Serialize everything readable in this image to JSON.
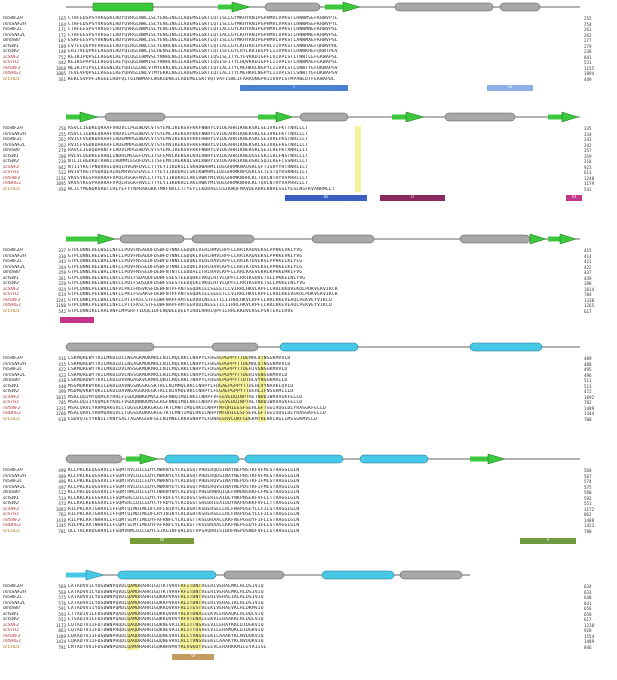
{
  "colors": {
    "strand": "#3cc83c",
    "helix": "#46c8e6",
    "helix_gray": "#a8a8a8",
    "motif_blue": "#4a7fd4",
    "motif_magenta": "#c2368a",
    "motif_olive": "#7a9c3a",
    "motif_tan": "#c39a60",
    "highlight": "#f3ec7a"
  },
  "species": [
    "hsSNF2H",
    "mmSNF2H",
    "hsSNF2L",
    "mmSNF2L",
    "dmISWI",
    "scISW1",
    "scISW2",
    "scSNF2",
    "scSTH1",
    "mtSNF2",
    "mtBRG1",
    "scCHD1"
  ],
  "blocks": [
    {
      "starts": [
        "165",
        "164",
        "171",
        "172",
        "187",
        "189",
        "148",
        "752",
        "442",
        "1068",
        "1005",
        "361"
      ],
      "ends": [
        "255",
        "254",
        "261",
        "262",
        "277",
        "279",
        "238",
        "841",
        "531",
        "1155",
        "1094",
        "449"
      ],
      "seqs": [
        "CTRFEDSPSYVKGGKLRDYQVRGLNWLISLYENGINGILADEMGLGKTLQTISLLGYMKHYRNIPGPHMVLVPKSTLHNWMSEFKRWVPTL",
        "CTRFEDSPSYVKGGKLRDYQVRGLNWLISLYENGINGILADEMGLGKTLQTISLLGYMKHYRNIPGPHMVLVPKSTLHNWMSEFKRWVPTL",
        "CTRFEESPSYVKGGTLRDYQVRGLNWMISLYENGINGILADEMGLGKTLQTIALLGYLKHYRNIPGPHMVLVPKSTLHNWMNEFKRWVPSL",
        "CTRFEESPSYVKGGTLRDYQVRGLNWMISLYENGINGILADEMGLGKTLQTIALLGYLKHYRNIPGPHMVLVPKSTLHNWMNEFKRWVPSL",
        "ESRFEESPSYVKNGKLRDYQVRGLNWLISLYENGINGILADEMGLGKTLQTISLLGYMKHYRNIPGPHMVLVPKSTLANWMAEFKRWVPSL",
        "EVTFEQSPAFVKGGELRDYQLRGLNWLLSLYENHLNGILADEMGLGKTLQTIALLGYLKHIKRIPGPHLIIVPKSTLANWHAEFQRWVPHL",
        "ERITVEQPKFLRGGHLRDYQIQGLNWLISLHENSLNGILADEMGLGKTLQTISFLGYLRYLKKIDGPFLIIVPKSTLDNWKREFQRWTPEV",
        "KEIKIPQPSLLRGGKLREYQLQGLEWMVSLYNNHLNGILADEMGLGKTIQSISLITYLYEVKKDIGPFLVIVPLSTITNWTLEFEKWAPSL",
        "KEIKSPAPSLLRGGQLREYQLQGLNWMISLYNNHLNGILADEMGLGKTIQSISFITYLHQVKKDIGPFLIIVPLSTLANWMAEFEKWAPSL",
        "NEIKIPIPSLLRGGNLREYQHIGLDWLVTMYEKKLNGILADEMGLGKTIQTIALITYLMEHKRLNGPYLIIVPLSTLSNWTYEFDKWAPSV",
        "TEVEVPQPSLLRGGELREYQHVGLDWLVTMYEKKLNGILADEMGLGKTIQTIALITYLMEHKRLNGPYLIIVPLSTLSNWTYEFDKWAPSV",
        "KEKLSVPPFIKGGELRDFQLTGINWMAFLWSKGDNGILADEMGLGKTVQTVAFISWLIFARRQNGPHIIVVPLSTMPAWLDTFEKWAPDL"
      ]
    },
    {
      "starts": [
        "256",
        "255",
        "262",
        "263",
        "278",
        "280",
        "239",
        "842",
        "532",
        "1156",
        "1095",
        "450"
      ],
      "ends": [
        "335",
        "334",
        "341",
        "342",
        "357",
        "359",
        "318",
        "923",
        "613",
        "1240",
        "1179",
        "541"
      ],
      "seqs": [
        "RSVCLIGDKEQRAAFVRDVLLPGEWDVCVTSYEMLIKEKSVFKKFNWRYLVIDEAHRIKNEKSKLSEIVREFKTTNRLLLT",
        "RSVCLIGDKEQRAAFVRDVLLPGEWDVCVTSYEMLIKEKSVFKKFNWRYLVIDEAHRIKNEKSKLSEIVREFKTTNRLLLT",
        "RVICFVGDKDARAAFIRDEMMPGEWDVCVTSYEMVIKEKSVFKKFHWRYLVIDEAHRIKNEKSKLSEIVREFKSTNRLLLT",
        "RVICFVGDKDARAAFIRDEMMPGEWDVCVTSYEMVIKEKSVFKKFHWRYLVIDEAHRIKNEKSKLSEIVREFKSTNRLLLT",
        "RAVCLIGDQDARNTFIRDVLMPGEWDVCVTSYEMCIREKSVFKKFNWRYLVIDEAHRIKNEKSKLSEILREFKTANRLLIT",
        "RVLVLQGDKEERHQLINDRLMEGEFDVLITSFEMVLREKGALKRLRWRYIVIDEAHRIKNEDSSLSKIIRLFNSTNRLLIT",
        "NTLILHGDKDTRHKIIRDMMLEGQFDVLITSFEMVIREKKDLSKLKWRYIVIDEAHRIKNEHSKLSQILREFCSSNRLLLT",
        "NTIIYKGTPNQRHSLQHQIRVGNFDVLLTTYEYIIKDKSLLSKHDWAHMIIDEGHRMKNAQSKLSFTISHYYRTRNRLILT",
        "NVIVYRGTPSQRQEAIREMRVGSFDVLLTTYEYIIKDQHILSKIKWMHMIIDEGHRMKNPQSKLSLTLSTQYRSKNRLILT",
        "VKVSYKGSPAARRAFVPQLRSGKFNVLLTTYEYIIKDKHILAKIRWKYMIVDEGHRMKNHHCKLTQVLNTHYVAPRRLLLT",
        "VKVSYKGSPAARRAFVPQLRSGKFNVLLTTYEYIIKDKHILAKIRWKYMIVDEGHRMKNHHCKLTQVLNTHYVAPRRLLLT",
        "NCICYMGNQKSRDTIREYEFYTNPRAKGKKTMKFNVLLTTYEYILKDRAELGSIKWQFMAVDEAHRLKNAESSLYESLNSFKVANRMLLT"
      ]
    },
    {
      "starts": [
        "337",
        "336",
        "343",
        "344",
        "359",
        "361",
        "320",
        "924",
        "614",
        "1241",
        "1180",
        "542"
      ],
      "ends": [
        "415",
        "414",
        "421",
        "422",
        "437",
        "439",
        "398",
        "1014",
        "704",
        "1330",
        "1265",
        "617"
      ],
      "seqs": [
        "GTPLQNNLHELWSLLNFLLPDVFNSADDFDSWFDTNNCLGDQKLVERLHMVLRPFLLRRIKADVEKSLPPKKEVKIYVG",
        "GTPLQNNLHELWSLLNFLLPDVFNSADDFDSWFDTNNCLGDQKLVERLHMVLRPFLLRRIKADVEKSLPPKKEVKIYVG",
        "GTPLQNNLHELWALLNFLLPDVFNSSEDFDSWFDTNNCLGDQKLVERLHAVLKPFLLRRIKTDVEKSLPPKKEIKIYLG",
        "GTPLQNNLHELWALLNFLLPDVFNSSEDFDSWFDTNNCLGDQKLVERLHAVLKPFLLRRIKTDVEKSLPPKKEIKIYLG",
        "GTPLQNNLHELWALLNFLLPDVFNSSEDFDEWFNTNTCLGDDALITRLHAVLKPFLLRRLKAEVEKRLKPKKEMKIFVG",
        "GTPLQNNLHELWALLNFLLPDIFSDAQDFDDWFSSESTEEDQDKIVKQLHTVLQPFLLRRIKSDVETSLLPKKELNLYVG",
        "GTPLQNNLHELWALLNFLLPDIFSDSQDFDSWFSSESTEEDQEKIVKQLHTVLQPFLLRRIKSDVETSLLPKKELNLYVG",
        "GTPLQNNLPELWALLNFVLPKIFNSVKSFDEWFNTPFANTGGQDKIELSEEETLLVIRRLHKVLRPFLLRRLKKDVEKDLPDKVEKVIKCK",
        "GTPLQNNLPELWALLNFLLPKIFSSAKSFDEWFNTPFANTGGQDKIELSEEETLLVIRRLHKVLRPFLLRRLKKEVEKDLPDKVEKVIKCK",
        "GTPLQNKLPELWALLNFLLPTIFKSCSTFEQWFNAPFAMTGERVDLNEEETILIIRRLHKVLRPFLLRRLKKEVEAQLPEKVEYVIKCD",
        "GTPLQNKLPELWALLNFLLPTIFKSCSTFEQWFNAPFAMTGERVDLNEEETILIIRRLHKVLRPFLLRRLKKEVEAQLPEKVEYVIKCD",
        "GTPLQNNIKELAALVNFLMPGRFTIDQEIDFENQDEEQEEYIHDLHRRIQPFILRRLKKDVEKSLPSKTERILRVE"
      ]
    },
    {
      "starts": [
        "416",
        "415",
        "422",
        "423",
        "438",
        "440",
        "399",
        "1015",
        "705",
        "1331",
        "1266",
        "618"
      ],
      "ends": [
        "489",
        "488",
        "495",
        "496",
        "511",
        "513",
        "472",
        "1092",
        "782",
        "1409",
        "1344",
        "700"
      ],
      "seqs": [
        "LSKMQREWYTRILMKDIDILNSAGKMDKMRLLNILMQLRKCCNHPYLFDGAEPGPPYTTDEMHLVTNSGKMVVLD",
        "LSKMQREWYTRILMKDIDILNSAGKMDKMRLLNILMQLRKCCNHPYLFDGAEPGPPYTTDEMHLVTNSGKMVVLD",
        "LSKMQREWYTKILMKDIDVLNSSGKMDKMRLLNILMQLRKCCNHPYLFDGAEPGPPYTTDEHIVGNSGKMVVLD",
        "LSKMQREWYTKILMKDIDVLNSSGKMDKMRLLNILMQLRKCCNHPYLFDGAEPGPPYTTDEHIVGNSGKMVVLD",
        "LSKMQRDWYTKVLLKDIDVVNGAGKVEKMRLQNILMQLRKCTNHPYLFDGAEPGPPYTTDTHLVYNSGKMAILD",
        "MSSMQKKWYKKILEKDLDAVNGSNGSKESKTRLLNIMMQLRKCCNHPYLFDGAEPGPPYTTDEHLVYNAAKLQVLD",
        "MSDMQVKWYQKILEKDIDAVNGAGGKREGKTRLLNIVMQLRKCCNHPYLFEGAEPGPPYTTDEHLIFNSGKMIILD",
        "MSALQQIMYQQMLKYRRLFIGDQNNKKMVGLRGFNNQIMQLKKICNHPFVFEEVEDQINPTRETNDDIWRVAGKFELLD",
        "MSALQQIIYQQMLKYKRLFVGDQNNKKMVGLRGFNNQIMQLKKICNHPFVFEEVEDQINPTRETNDDIWRVAGKFELLD",
        "MSALQRVLYRHMQAKGVLLTDGSEKDKKGKGGTKTLMNTIMQLRKICNHPYMFQHIEESFSEHLGFTGGIVQGLDLYRASGKFELLD",
        "MSALQRVLYRHMQAKGVLLTDGSEKDKKGKGGTKTLMNTIMQLRKICNHPYMFQHIEESFSEHLGFTGGIVQGLDLYRASGKFELLD",
        "LSDVQTEYYKNILTKNYSALTAGAKGGHFSLLNIMNELKKASNHPYLFDNAEERVLQKFGDGKMTRENVLRGLIMSSGKMVLLD"
      ]
    },
    {
      "starts": [
        "490",
        "489",
        "496",
        "497",
        "512",
        "514",
        "473",
        "1093",
        "783",
        "1410",
        "1345",
        "701"
      ],
      "ends": [
        "568",
        "567",
        "574",
        "575",
        "590",
        "592",
        "551",
        "1172",
        "862",
        "1488",
        "1423",
        "780"
      ],
      "seqs": [
        "KLLPKLKEQGSRVLIFSQMTRVLDILEDYCMWRNYEYCRLDGQTPHDERQDSINAYNEPNSTKFVFMLSTRAGGLGIN",
        "KLLPKLKEQGSRVLIFSQMTRVLDILEDYCMWRNYEYCRLDGQTPHDERQDSINAYNEPNSTKFVFMLSTRAGGLGIN",
        "KLLPKLKEQGSRVLIFSQMTRVLDILEDYCMWRNYEYCRLDGQTPHDERQVSINAYNEPDSTKFIFMLSTRAGGLGIN",
        "KLLPKLKEQGSRVLIFSQMTRVLDILEDYCMWRNYEYCRLDGQTPHDERQVSINAYNEPDSTKFIFMLSTRAGGLGIN",
        "KLLPKLQEQGSRVLIFSQMTRMLDILEDYCHWRNYNYCRLDGQTPHEDRNRQIQEFNMDNSAKFLFMLSTRAGGLGIN",
        "KLLKKLKEEGSRVLIFSQMSRLLDILEDYCYFRDFEYCRIDGSTSHEERIEAIDEYNKPNSEKFVFLLTTRAGGLGIN",
        "KLLKRLKEKGSRVLIFSQMSRLLDILEDYCYFRDYEYCRIDGSTSHEDRIEAIDDYNAPDSKKFVFLLTTRAGGLGIN",
        "RILPKLKATGHRVLIFFQMTQIMDIMEDFLRFLNIKYLRLDGHTKSDERSELLRLFNAPDSEYLCFILSTRAGGLGLN",
        "RILPKLKATGHRVLIFFQMTQIMDIMEDFLRYINIKYLRLDGHTKSDERSELLRLFNAPDSEYLCFILSTRAGGLGLN",
        "RILPKLRATNHRVLLFCQMTSLMTIMEDYFAFRNFLYLRLDGTTKSEDRAALLKKFNEPGSQYFIFLLSTRAGGLGLN",
        "RILPKLRATNHRVLLFCQMTSLMTIMEDYFAFRNFLYLRLDGTTKSEDRAALLKKFNEPGSQYFIFLLSTRAGGLGLN",
        "QLLTRLKKDGHRVLIFSQMVRMLDILGDYLSIKGINFQRLDGTVPSAQRRISIDHFNSPDSNDFVFLLSTRAGGLGIN"
      ]
    },
    {
      "starts": [
        "569",
        "568",
        "575",
        "576",
        "591",
        "593",
        "552",
        "1173",
        "863",
        "1489",
        "1424",
        "781"
      ],
      "ends": [
        "634",
        "633",
        "640",
        "641",
        "656",
        "658",
        "617",
        "1238",
        "928",
        "1554",
        "1489",
        "846"
      ],
      "seqs": [
        "LATADVVILYDSDWNPQVDLQAMDRAHRIGQTKTVRVFRFITDNTVEERIVERAEMKLRLDSIVIQ",
        "LATADVVILYDSDWNPQVDLQAMDRAHRIGQTKTVRVFRFITDNTVEERIVERAEMKLRLDSIVIQ",
        "LATADVVILYDSDWNPQVDLQAMDRAHRIGQKKPVRVFRLITDNTVEERIVERAEIKLRLDSIVIQ",
        "LATADVVILYDSDWNPQVDLQAMDRAHRIGQKKPVRVFRLITDNTVEERIVERAEIKLRLDSIVIQ",
        "LATADVVIIYDSDWNPQMDLQAMDRAHRIGQKKQVRVFRLITESTVEEKIVERAEVKLRLDKMVIQ",
        "LTTADIVILFDSDWNPQADLQAMDRAHRIGQKKQVHVYRLVTDNAIEEKVLERAAQKLRLDQLVIQ",
        "LTSADIVILFDSDWNPQADLQAMDRAHRIGQKKQVHVYRFVTENAIEEKVIERAAKKLRLDQLVIQ",
        "LQTADTVIIFDTDWNPHQDLQAQDRAHRIGQKNEVRILRLITTNSVEEVILERAYKKLDIDGKVIQ",
        "LQTADTVIIFDTDWNPHQDLQAQDRAHRIGQKNEVRILRLITTDSVEEVILERAMQKLDIDGKVIQ",
        "LQAADTVIIFDSDWNPHQDLQAQDRAHRIGQQNEVRVLRLCTVNSVEEKILAAAKYKLNVDQKVIQ",
        "LQAADTVIIFDSDWNPHQDLQAQDRAHRIGQQNEVRVLRLCTVNSVEEKILAAAKYKLNVDQKVIQ",
        "LMTADTVVIFDSDWNPQADLQAMARAHRIGQKNHVMVYRLVSKDTVEEEVLERARKKMILEYAIISL"
      ]
    }
  ],
  "motif_labels": [
    "I",
    "Ia",
    "Ib",
    "II",
    "III",
    "IV",
    "V",
    "VI"
  ]
}
